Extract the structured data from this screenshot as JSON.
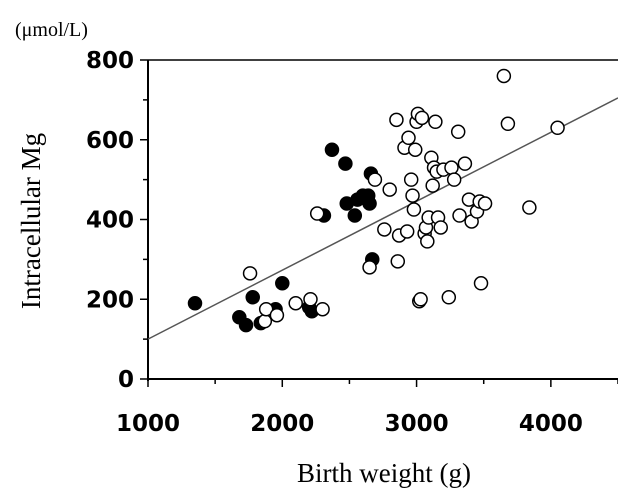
{
  "chart_data": {
    "type": "scatter",
    "unit_label": "(μmol/L)",
    "xlabel": "Birth weight (g)",
    "ylabel": "Intracellular Mg",
    "xlim": [
      1000,
      4500
    ],
    "ylim": [
      0,
      800
    ],
    "x_ticks": [
      "1000",
      "2000",
      "3000",
      "4000"
    ],
    "y_ticks": [
      "0",
      "200",
      "400",
      "600",
      "800"
    ],
    "grid": false,
    "legend": "none",
    "trendline": {
      "x": [
        1000,
        4500
      ],
      "y": [
        100,
        705
      ]
    },
    "series": [
      {
        "marker": "filled-circle",
        "color": "#000000",
        "points": [
          [
            1350,
            190
          ],
          [
            1680,
            155
          ],
          [
            1730,
            135
          ],
          [
            1780,
            205
          ],
          [
            1840,
            140
          ],
          [
            1950,
            175
          ],
          [
            2000,
            240
          ],
          [
            2200,
            180
          ],
          [
            2220,
            170
          ],
          [
            2310,
            410
          ],
          [
            2370,
            575
          ],
          [
            2470,
            540
          ],
          [
            2480,
            440
          ],
          [
            2540,
            410
          ],
          [
            2560,
            450
          ],
          [
            2600,
            460
          ],
          [
            2640,
            460
          ],
          [
            2650,
            440
          ],
          [
            2660,
            515
          ],
          [
            2670,
            300
          ]
        ]
      },
      {
        "marker": "open-circle",
        "color": "#000000",
        "points": [
          [
            1760,
            265
          ],
          [
            1870,
            145
          ],
          [
            1880,
            175
          ],
          [
            1960,
            160
          ],
          [
            2100,
            190
          ],
          [
            2210,
            200
          ],
          [
            2260,
            415
          ],
          [
            2300,
            175
          ],
          [
            2650,
            280
          ],
          [
            2690,
            500
          ],
          [
            2760,
            375
          ],
          [
            2800,
            475
          ],
          [
            2850,
            650
          ],
          [
            2860,
            295
          ],
          [
            2870,
            360
          ],
          [
            2910,
            580
          ],
          [
            2930,
            370
          ],
          [
            2940,
            605
          ],
          [
            2960,
            500
          ],
          [
            2970,
            460
          ],
          [
            2980,
            425
          ],
          [
            2990,
            575
          ],
          [
            3000,
            645
          ],
          [
            3010,
            665
          ],
          [
            3020,
            195
          ],
          [
            3030,
            200
          ],
          [
            3040,
            655
          ],
          [
            3060,
            365
          ],
          [
            3070,
            380
          ],
          [
            3080,
            345
          ],
          [
            3090,
            405
          ],
          [
            3110,
            555
          ],
          [
            3120,
            485
          ],
          [
            3130,
            530
          ],
          [
            3140,
            645
          ],
          [
            3150,
            520
          ],
          [
            3160,
            405
          ],
          [
            3180,
            380
          ],
          [
            3200,
            525
          ],
          [
            3240,
            205
          ],
          [
            3260,
            530
          ],
          [
            3280,
            500
          ],
          [
            3310,
            620
          ],
          [
            3320,
            410
          ],
          [
            3360,
            540
          ],
          [
            3390,
            450
          ],
          [
            3410,
            395
          ],
          [
            3450,
            420
          ],
          [
            3470,
            445
          ],
          [
            3480,
            240
          ],
          [
            3510,
            440
          ],
          [
            3650,
            760
          ],
          [
            3680,
            640
          ],
          [
            3840,
            430
          ],
          [
            4050,
            630
          ]
        ]
      }
    ]
  }
}
